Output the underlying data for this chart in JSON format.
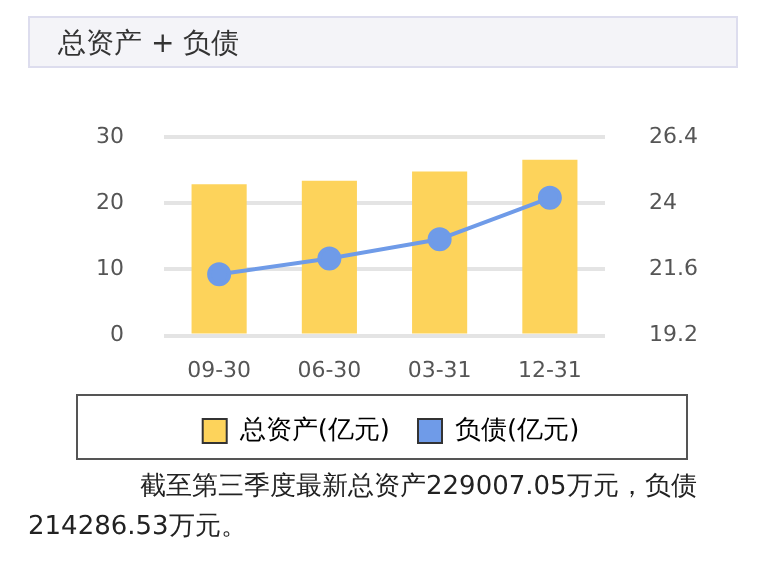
{
  "chart_data": {
    "type": "bar",
    "title": "总资产 + 负债",
    "categories": [
      "09-30",
      "06-30",
      "03-31",
      "12-31"
    ],
    "series": [
      {
        "name": "总资产(亿元)",
        "color": "#fdd35b",
        "values": [
          22.9,
          23.4,
          24.8,
          26.6
        ]
      },
      {
        "name": "负债(亿元)",
        "color": "#6f9be8",
        "type": "line",
        "axis": "y2",
        "values": [
          21.43,
          22.0,
          22.7,
          24.2
        ]
      }
    ],
    "ylim": [
      0,
      30
    ],
    "yticks": [
      0,
      10,
      20,
      30
    ],
    "y2lim": [
      19.2,
      26.4
    ],
    "y2ticks": [
      19.2,
      21.6,
      24,
      26.4
    ],
    "grid": "y",
    "legend": "bottom",
    "marker": "circle",
    "annotations": [
      "截至第三季度最新总资产229007.05万元，负债214286.53万元。"
    ]
  }
}
